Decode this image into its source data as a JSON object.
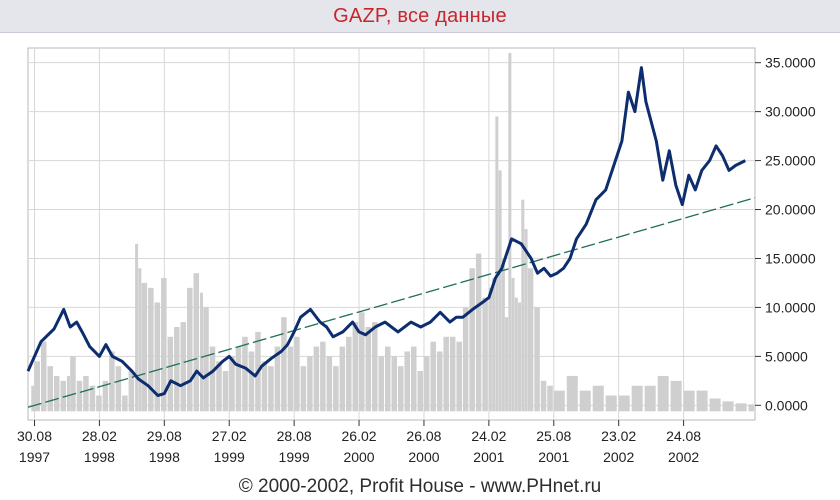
{
  "header": {
    "title": "GAZP, все данные"
  },
  "footer": {
    "copyright": "© 2000-2002, Profit House - www.PHnet.ru"
  },
  "colors": {
    "price_line": "#0d2d6e",
    "trend_line": "#1f6e5c",
    "volume_bars": "#cfcfcf",
    "grid": "#d7d7d7",
    "title_text": "#c8262c",
    "title_bg": "#e4e6ec"
  },
  "chart_data": {
    "type": "line",
    "grid": true,
    "y_axis_side": "right",
    "ylim": [
      -1.5,
      36.5
    ],
    "y_ticks": [
      "35.0000",
      "30.0000",
      "25.0000",
      "20.0000",
      "15.0000",
      "10.0000",
      "5.0000",
      "0.0000"
    ],
    "y_tick_values": [
      35,
      30,
      25,
      20,
      15,
      10,
      5,
      0
    ],
    "x_tick_labels": [
      [
        "30.08",
        "1997"
      ],
      [
        "28.02",
        "1998"
      ],
      [
        "29.08",
        "1998"
      ],
      [
        "27.02",
        "1999"
      ],
      [
        "28.08",
        "1999"
      ],
      [
        "26.02",
        "2000"
      ],
      [
        "26.08",
        "2000"
      ],
      [
        "24.02",
        "2001"
      ],
      [
        "25.08",
        "2001"
      ],
      [
        "23.02",
        "2002"
      ],
      [
        "24.08",
        "2002"
      ]
    ],
    "x_tick_index": [
      0,
      1,
      2,
      3,
      4,
      5,
      6,
      7,
      8,
      9,
      10
    ],
    "xlim": [
      -0.1,
      11.1
    ],
    "series": [
      {
        "type": "line",
        "x": [
          -0.1,
          0.1,
          0.3,
          0.45,
          0.55,
          0.65,
          0.75,
          0.85,
          1.0,
          1.1,
          1.2,
          1.35,
          1.5,
          1.6,
          1.75,
          1.9,
          2.0,
          2.1,
          2.25,
          2.4,
          2.5,
          2.6,
          2.75,
          2.9,
          3.0,
          3.1,
          3.25,
          3.4,
          3.5,
          3.65,
          3.8,
          3.9,
          4.0,
          4.1,
          4.25,
          4.4,
          4.5,
          4.6,
          4.75,
          4.9,
          5.0,
          5.1,
          5.25,
          5.4,
          5.5,
          5.6,
          5.8,
          5.95,
          6.1,
          6.25,
          6.4,
          6.5,
          6.6,
          6.75,
          6.9,
          7.0,
          7.1,
          7.2,
          7.35,
          7.5,
          7.65,
          7.75,
          7.85,
          7.95,
          8.05,
          8.15,
          8.25,
          8.35,
          8.5,
          8.65,
          8.8,
          8.95,
          9.05,
          9.15,
          9.25,
          9.35,
          9.42,
          9.5,
          9.58,
          9.68,
          9.78,
          9.88,
          9.98,
          10.08,
          10.18,
          10.28,
          10.4,
          10.5,
          10.6,
          10.7,
          10.8,
          10.95
        ],
        "y": [
          3.5,
          6.5,
          7.8,
          9.8,
          8.0,
          8.5,
          7.3,
          6.0,
          5.0,
          6.2,
          5.0,
          4.5,
          3.5,
          2.7,
          2.0,
          1.0,
          1.2,
          2.5,
          2.0,
          2.5,
          3.5,
          2.8,
          3.5,
          4.5,
          5.0,
          4.2,
          3.8,
          3.0,
          4.0,
          4.8,
          5.5,
          6.2,
          7.5,
          9.0,
          9.8,
          8.5,
          8.0,
          7.0,
          7.5,
          8.5,
          7.5,
          7.2,
          8.0,
          8.5,
          8.0,
          7.5,
          8.5,
          8.0,
          8.5,
          9.5,
          8.5,
          9.0,
          9.0,
          9.8,
          10.5,
          11.0,
          13.0,
          14.0,
          17.0,
          16.5,
          15.0,
          13.5,
          14.0,
          13.2,
          13.5,
          14.0,
          15.0,
          17.0,
          18.5,
          21.0,
          22.0,
          25.0,
          27.0,
          32.0,
          30.0,
          34.5,
          31.0,
          29.0,
          27.0,
          23.0,
          26.0,
          22.5,
          20.5,
          23.5,
          22.0,
          24.0,
          25.0,
          26.5,
          25.5,
          24.0,
          24.5,
          25.0
        ]
      },
      {
        "type": "trend",
        "x": [
          -0.1,
          11.1
        ],
        "y": [
          -0.2,
          21.2
        ]
      },
      {
        "type": "volume",
        "x": [
          -0.05,
          0.0,
          0.1,
          0.2,
          0.3,
          0.4,
          0.5,
          0.55,
          0.65,
          0.75,
          0.85,
          0.95,
          1.05,
          1.15,
          1.25,
          1.35,
          1.45,
          1.55,
          1.6,
          1.65,
          1.75,
          1.85,
          1.95,
          2.05,
          2.15,
          2.25,
          2.35,
          2.45,
          2.55,
          2.6,
          2.7,
          2.8,
          2.9,
          3.0,
          3.1,
          3.2,
          3.3,
          3.4,
          3.5,
          3.6,
          3.7,
          3.8,
          3.9,
          4.0,
          4.1,
          4.2,
          4.3,
          4.4,
          4.5,
          4.6,
          4.7,
          4.8,
          4.9,
          5.0,
          5.1,
          5.2,
          5.3,
          5.4,
          5.5,
          5.6,
          5.7,
          5.8,
          5.9,
          6.0,
          6.1,
          6.2,
          6.3,
          6.4,
          6.5,
          6.6,
          6.7,
          6.8,
          6.9,
          7.0,
          7.05,
          7.1,
          7.15,
          7.2,
          7.25,
          7.3,
          7.35,
          7.4,
          7.45,
          7.5,
          7.55,
          7.6,
          7.7,
          7.8,
          7.9,
          8.0,
          8.2,
          8.4,
          8.6,
          8.8,
          9.0,
          9.2,
          9.4,
          9.6,
          9.8,
          10.0,
          10.2,
          10.4,
          10.6,
          10.8,
          11.0
        ],
        "y": [
          2.0,
          4.5,
          6.5,
          4.0,
          3.0,
          2.5,
          3.0,
          5.0,
          2.5,
          3.0,
          2.0,
          1.0,
          2.5,
          5.5,
          4.0,
          1.0,
          3.5,
          16.5,
          14.0,
          12.5,
          12.0,
          10.5,
          13.0,
          7.0,
          8.0,
          8.5,
          12.0,
          13.5,
          11.5,
          10.0,
          6.0,
          4.5,
          3.5,
          5.0,
          6.0,
          7.0,
          5.5,
          7.5,
          4.5,
          4.0,
          6.0,
          9.0,
          6.0,
          7.0,
          4.0,
          5.0,
          6.0,
          6.5,
          5.0,
          4.0,
          6.0,
          7.0,
          8.5,
          9.5,
          8.0,
          8.5,
          5.0,
          6.0,
          5.0,
          4.0,
          5.5,
          6.0,
          3.5,
          5.0,
          6.5,
          5.5,
          7.0,
          7.0,
          6.5,
          10.0,
          14.0,
          15.5,
          11.0,
          12.0,
          13.0,
          29.5,
          24.0,
          15.0,
          9.0,
          36.0,
          13.0,
          11.0,
          10.5,
          21.0,
          18.0,
          14.0,
          10.0,
          2.5,
          2.0,
          1.5,
          3.0,
          1.5,
          2.0,
          1.0,
          1.0,
          2.0,
          2.0,
          3.0,
          2.5,
          1.5,
          1.5,
          0.7,
          0.4,
          0.2,
          0.1
        ]
      }
    ]
  }
}
